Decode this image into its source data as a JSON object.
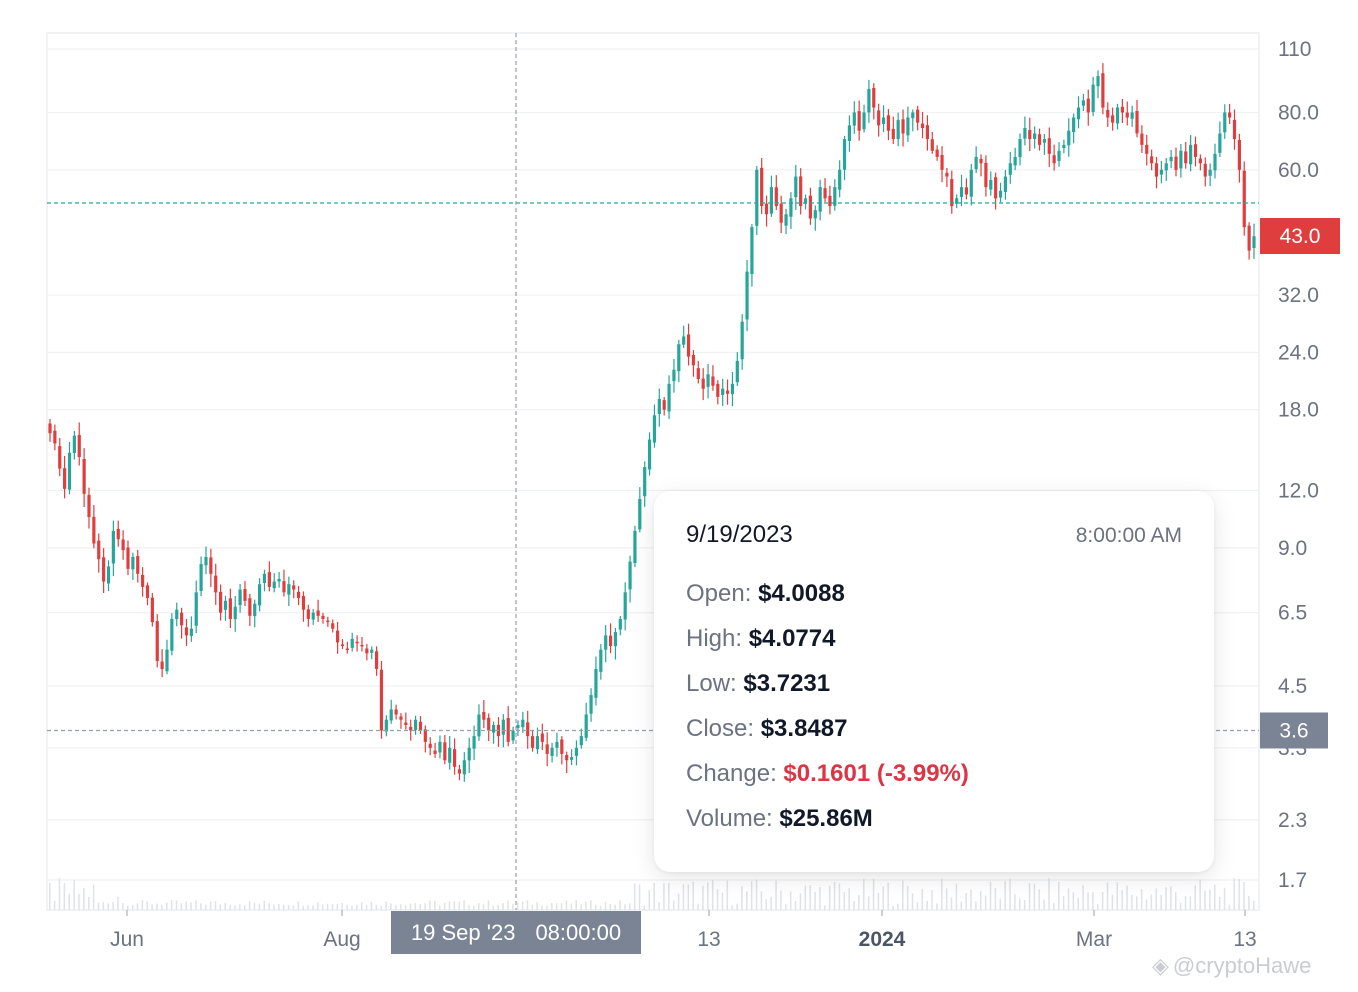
{
  "chart_data": {
    "type": "candlestick",
    "scale": "log",
    "grid": true,
    "x_ticks": [
      {
        "label": "Jun",
        "bold": false
      },
      {
        "label": "Aug",
        "bold": false
      },
      {
        "label": "13",
        "bold": false
      },
      {
        "label": "2024",
        "bold": true
      },
      {
        "label": "Mar",
        "bold": false
      },
      {
        "label": "13",
        "bold": false
      }
    ],
    "y_ticks": [
      "110",
      "80.0",
      "60.0",
      "32.0",
      "24.0",
      "18.0",
      "12.0",
      "9.0",
      "6.5",
      "4.5",
      "3.3",
      "2.3",
      "1.7"
    ],
    "y_tick_values": [
      110,
      80,
      60,
      32,
      24,
      18,
      12,
      9,
      6.5,
      4.5,
      3.3,
      2.3,
      1.7
    ],
    "last_price": {
      "label": "43.0",
      "value": 43.0,
      "color": "#e03e3e"
    },
    "crosshair_price": {
      "label": "3.6",
      "value": 3.6,
      "color": "#7b8494"
    },
    "up_color": "#26a69a",
    "down_color": "#e03e3e",
    "closes": [
      16.0,
      15.2,
      13.4,
      12.1,
      14.5,
      15.8,
      14.2,
      11.8,
      10.5,
      9.2,
      8.5,
      7.6,
      8.2,
      9.8,
      9.4,
      8.9,
      8.1,
      8.6,
      7.9,
      7.4,
      7.0,
      6.2,
      5.1,
      4.9,
      5.4,
      6.3,
      6.6,
      6.1,
      5.8,
      6.0,
      7.2,
      8.3,
      8.6,
      7.9,
      7.2,
      6.5,
      6.9,
      6.3,
      6.7,
      7.3,
      6.9,
      6.4,
      6.8,
      7.5,
      7.9,
      7.4,
      7.6,
      7.7,
      7.2,
      7.5,
      7.3,
      7.0,
      6.6,
      6.3,
      6.5,
      6.4,
      6.3,
      6.2,
      6.0,
      5.6,
      5.5,
      5.4,
      5.7,
      5.6,
      5.5,
      5.3,
      5.4,
      4.9,
      3.6,
      3.8,
      4.0,
      3.9,
      3.8,
      3.7,
      3.6,
      3.8,
      3.6,
      3.4,
      3.3,
      3.2,
      3.4,
      3.1,
      3.3,
      3.0,
      2.9,
      3.1,
      3.3,
      3.5,
      3.9,
      3.8,
      3.6,
      3.7,
      3.5,
      3.8,
      3.4,
      3.6,
      3.7,
      3.8,
      3.5,
      3.3,
      3.5,
      3.4,
      3.2,
      3.3,
      3.4,
      3.2,
      3.1,
      3.15,
      3.3,
      3.5,
      3.9,
      4.3,
      4.9,
      5.4,
      5.8,
      5.5,
      5.9,
      6.3,
      7.2,
      8.4,
      9.8,
      11.5,
      13.5,
      15.5,
      17.5,
      19.0,
      18.0,
      20.5,
      22.0,
      25.0,
      26.0,
      23.5,
      22.5,
      21.0,
      20.0,
      21.5,
      20.3,
      19.2,
      20.0,
      19.5,
      20.5,
      23.0,
      28.0,
      36.0,
      45.0,
      60.0,
      50.0,
      48.0,
      55.0,
      50.0,
      46.0,
      48.0,
      52.0,
      58.0,
      50.0,
      52.0,
      47.0,
      49.0,
      55.0,
      52.0,
      50.0,
      55.0,
      60.0,
      70.0,
      75.0,
      80.0,
      73.0,
      80.0,
      90.0,
      82.0,
      75.0,
      78.0,
      73.0,
      70.0,
      77.0,
      72.0,
      78.0,
      80.0,
      76.0,
      74.0,
      70.0,
      66.0,
      64.0,
      60.0,
      58.0,
      50.0,
      52.0,
      55.0,
      53.0,
      60.0,
      64.0,
      62.0,
      55.0,
      57.0,
      52.0,
      54.0,
      58.0,
      62.0,
      64.0,
      70.0,
      74.0,
      70.0,
      72.0,
      68.0,
      70.0,
      65.0,
      62.0,
      66.0,
      68.0,
      73.0,
      78.0,
      82.0,
      85.0,
      80.0,
      92.0,
      96.0,
      82.0,
      78.0,
      76.0,
      82.0,
      80.0,
      78.0,
      80.0,
      72.0,
      68.0,
      65.0,
      62.0,
      58.0,
      60.0,
      62.0,
      64.0,
      60.0,
      66.0,
      62.0,
      68.0,
      64.0,
      62.0,
      58.0,
      60.0,
      65.0,
      72.0,
      80.0,
      78.0,
      70.0,
      60.0,
      45.0,
      40.0,
      43.0
    ],
    "tooltip": {
      "date": "9/19/2023",
      "time": "8:00:00 AM",
      "open": "$4.0088",
      "high": "$4.0774",
      "low": "$3.7231",
      "close": "$3.8487",
      "change": "$0.1601 (-3.99%)",
      "volume": "$25.86M"
    },
    "crosshair_date": {
      "date": "19 Sep '23",
      "time": "08:00:00"
    }
  },
  "labels": {
    "open": "Open:",
    "high": "High:",
    "low": "Low:",
    "close": "Close:",
    "change": "Change:",
    "volume": "Volume:"
  },
  "watermark": "@cryptoHawe"
}
